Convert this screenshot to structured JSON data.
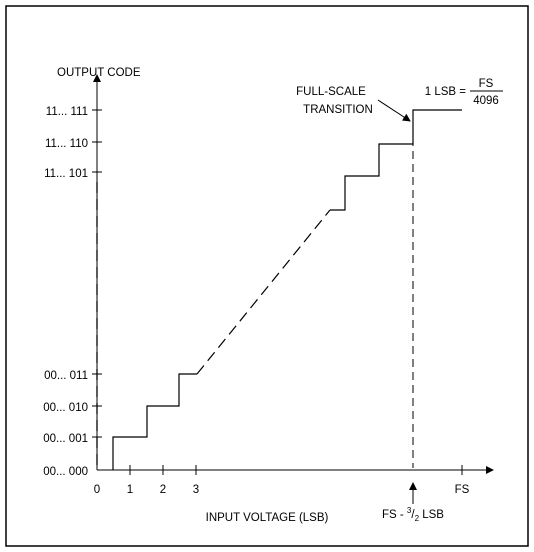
{
  "y_axis_title": "OUTPUT CODE",
  "x_axis_title": "INPUT VOLTAGE (LSB)",
  "y_tick_labels": [
    "00... 000",
    "00... 001",
    "00... 010",
    "00... 011",
    "11... 101",
    "11... 110",
    "11... 111"
  ],
  "x_tick_labels": {
    "zero": "0",
    "one": "1",
    "two": "2",
    "three": "3",
    "fs": "FS"
  },
  "annotation": {
    "line1": "FULL-SCALE",
    "line2": "TRANSITION"
  },
  "lsb_formula": {
    "lhs": "1 LSB =",
    "numerator": "FS",
    "denominator": "4096"
  },
  "fs_transition_label": {
    "prefix": "FS - ",
    "sup": "3",
    "slash": "/",
    "sub": "2",
    "suffix": " LSB"
  }
}
